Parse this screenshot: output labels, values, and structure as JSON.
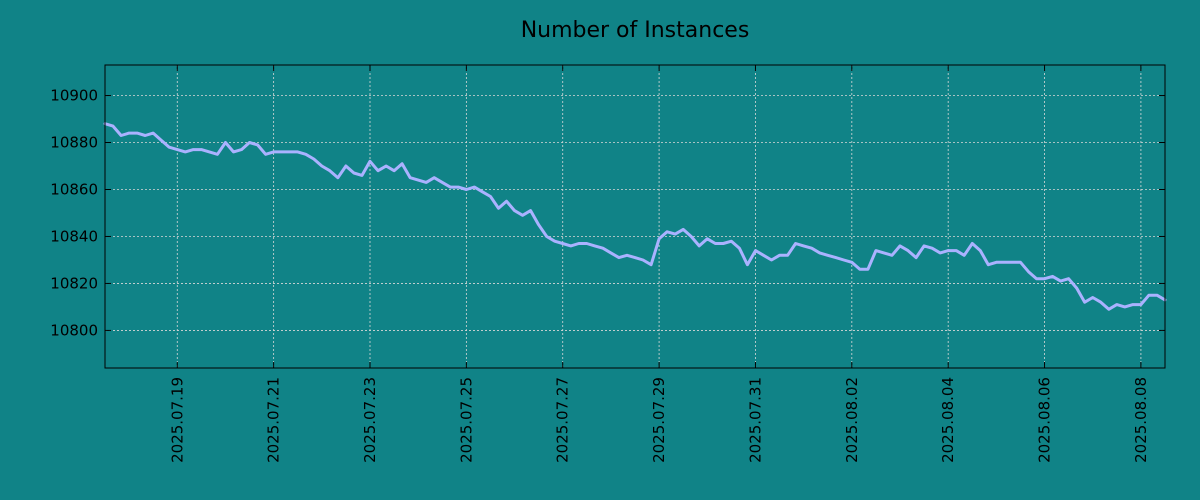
{
  "chart_data": {
    "type": "line",
    "title": "Number of Instances",
    "xlabel": "",
    "ylabel": "",
    "x_type": "date",
    "xlim": [
      "2025-07-17T12:00",
      "2025-08-08T12:00"
    ],
    "ylim": [
      10784,
      10913
    ],
    "grid": true,
    "legend": "none",
    "x_ticks": [
      "2025.07.19",
      "2025.07.21",
      "2025.07.23",
      "2025.07.25",
      "2025.07.27",
      "2025.07.29",
      "2025.07.31",
      "2025.08.02",
      "2025.08.04",
      "2025.08.06",
      "2025.08.08"
    ],
    "y_ticks": [
      "10800",
      "10820",
      "10840",
      "10860",
      "10880",
      "10900"
    ],
    "colors": {
      "background": "#108387",
      "line": "#aab2ff"
    },
    "series": [
      {
        "x": [
          "2025-07-17T12:00",
          "2025-07-17T16:00",
          "2025-07-17T20:00",
          "2025-07-18T00:00",
          "2025-07-18T04:00",
          "2025-07-18T08:00",
          "2025-07-18T12:00",
          "2025-07-18T16:00",
          "2025-07-18T20:00",
          "2025-07-19T00:00",
          "2025-07-19T04:00",
          "2025-07-19T08:00",
          "2025-07-19T12:00",
          "2025-07-19T16:00",
          "2025-07-19T20:00",
          "2025-07-20T00:00",
          "2025-07-20T04:00",
          "2025-07-20T08:00",
          "2025-07-20T12:00",
          "2025-07-20T16:00",
          "2025-07-20T20:00",
          "2025-07-21T00:00",
          "2025-07-21T04:00",
          "2025-07-21T08:00",
          "2025-07-21T12:00",
          "2025-07-21T16:00",
          "2025-07-21T20:00",
          "2025-07-22T00:00",
          "2025-07-22T04:00",
          "2025-07-22T08:00",
          "2025-07-22T12:00",
          "2025-07-22T16:00",
          "2025-07-22T20:00",
          "2025-07-23T00:00",
          "2025-07-23T04:00",
          "2025-07-23T08:00",
          "2025-07-23T12:00",
          "2025-07-23T16:00",
          "2025-07-23T20:00",
          "2025-07-24T00:00",
          "2025-07-24T04:00",
          "2025-07-24T08:00",
          "2025-07-24T12:00",
          "2025-07-24T16:00",
          "2025-07-24T20:00",
          "2025-07-25T00:00",
          "2025-07-25T04:00",
          "2025-07-25T08:00",
          "2025-07-25T12:00",
          "2025-07-25T16:00",
          "2025-07-25T20:00",
          "2025-07-26T00:00",
          "2025-07-26T04:00",
          "2025-07-26T08:00",
          "2025-07-26T12:00",
          "2025-07-26T16:00",
          "2025-07-26T20:00",
          "2025-07-27T00:00",
          "2025-07-27T04:00",
          "2025-07-27T08:00",
          "2025-07-27T12:00",
          "2025-07-27T16:00",
          "2025-07-27T20:00",
          "2025-07-28T00:00",
          "2025-07-28T04:00",
          "2025-07-28T08:00",
          "2025-07-28T12:00",
          "2025-07-28T16:00",
          "2025-07-28T20:00",
          "2025-07-29T00:00",
          "2025-07-29T04:00",
          "2025-07-29T08:00",
          "2025-07-29T12:00",
          "2025-07-29T16:00",
          "2025-07-29T20:00",
          "2025-07-30T00:00",
          "2025-07-30T04:00",
          "2025-07-30T08:00",
          "2025-07-30T12:00",
          "2025-07-30T16:00",
          "2025-07-30T20:00",
          "2025-07-31T00:00",
          "2025-07-31T04:00",
          "2025-07-31T08:00",
          "2025-07-31T12:00",
          "2025-07-31T16:00",
          "2025-07-31T20:00",
          "2025-08-01T00:00",
          "2025-08-01T04:00",
          "2025-08-01T08:00",
          "2025-08-01T12:00",
          "2025-08-01T16:00",
          "2025-08-01T20:00",
          "2025-08-02T00:00",
          "2025-08-02T04:00",
          "2025-08-02T08:00",
          "2025-08-02T12:00",
          "2025-08-02T16:00",
          "2025-08-02T20:00",
          "2025-08-03T00:00",
          "2025-08-03T04:00",
          "2025-08-03T08:00",
          "2025-08-03T12:00",
          "2025-08-03T16:00",
          "2025-08-03T20:00",
          "2025-08-04T00:00",
          "2025-08-04T04:00",
          "2025-08-04T08:00",
          "2025-08-04T12:00",
          "2025-08-04T16:00",
          "2025-08-04T20:00",
          "2025-08-05T00:00",
          "2025-08-05T04:00",
          "2025-08-05T08:00",
          "2025-08-05T12:00",
          "2025-08-05T16:00",
          "2025-08-05T20:00",
          "2025-08-06T00:00",
          "2025-08-06T04:00",
          "2025-08-06T08:00",
          "2025-08-06T12:00",
          "2025-08-06T16:00",
          "2025-08-06T20:00",
          "2025-08-07T00:00",
          "2025-08-07T04:00",
          "2025-08-07T08:00",
          "2025-08-07T12:00",
          "2025-08-07T16:00",
          "2025-08-07T20:00",
          "2025-08-08T00:00",
          "2025-08-08T04:00",
          "2025-08-08T08:00",
          "2025-08-08T12:00"
        ],
        "y": [
          10888,
          10887,
          10883,
          10884,
          10884,
          10883,
          10884,
          10881,
          10878,
          10877,
          10876,
          10877,
          10877,
          10876,
          10875,
          10880,
          10876,
          10877,
          10880,
          10879,
          10875,
          10876,
          10876,
          10876,
          10876,
          10875,
          10873,
          10870,
          10868,
          10865,
          10870,
          10867,
          10866,
          10872,
          10868,
          10870,
          10868,
          10871,
          10865,
          10864,
          10863,
          10865,
          10863,
          10861,
          10861,
          10860,
          10861,
          10859,
          10857,
          10852,
          10855,
          10851,
          10849,
          10851,
          10845,
          10840,
          10838,
          10837,
          10836,
          10837,
          10837,
          10836,
          10835,
          10833,
          10831,
          10832,
          10831,
          10830,
          10828,
          10839,
          10842,
          10841,
          10843,
          10840,
          10836,
          10839,
          10837,
          10837,
          10838,
          10835,
          10828,
          10834,
          10832,
          10830,
          10832,
          10832,
          10837,
          10836,
          10835,
          10833,
          10832,
          10831,
          10830,
          10829,
          10826,
          10826,
          10834,
          10833,
          10832,
          10836,
          10834,
          10831,
          10836,
          10835,
          10833,
          10834,
          10834,
          10832,
          10837,
          10834,
          10828,
          10829,
          10829,
          10829,
          10829,
          10825,
          10822,
          10822,
          10823,
          10821,
          10822,
          10818,
          10812,
          10814,
          10812,
          10809,
          10811,
          10810,
          10811,
          10811,
          10815,
          10815,
          10813
        ]
      }
    ]
  }
}
